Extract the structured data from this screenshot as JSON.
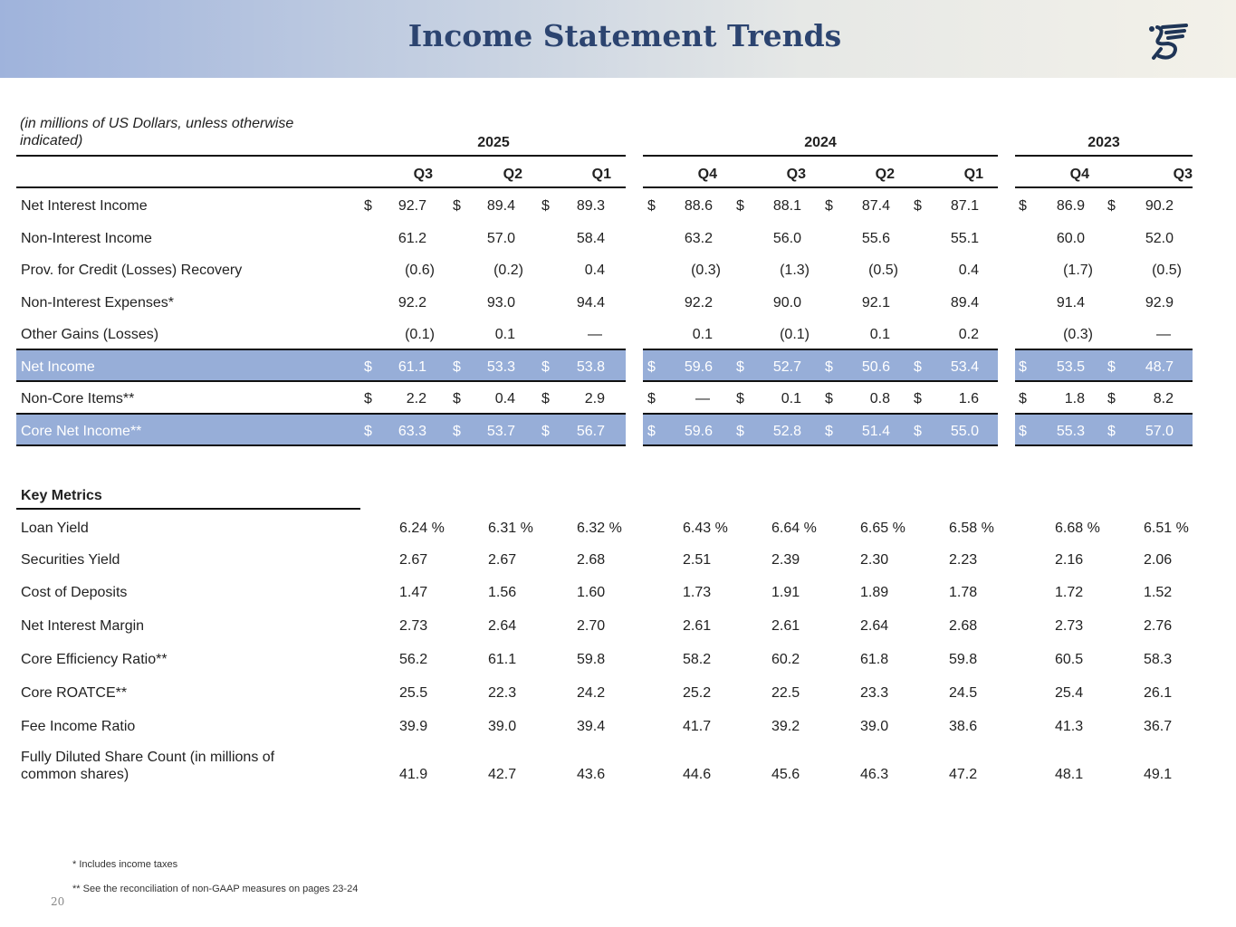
{
  "header": {
    "title": "Income Statement Trends",
    "logo": "dragon-5-logo"
  },
  "units_note": "(in millions of US Dollars, unless otherwise indicated)",
  "years": [
    "2025",
    "2024",
    "2023"
  ],
  "quarters": [
    "Q3",
    "Q2",
    "Q1",
    "Q4",
    "Q3",
    "Q2",
    "Q1",
    "Q4",
    "Q3"
  ],
  "income_rows": [
    {
      "label": "Net Interest Income",
      "dollar": true,
      "highlight": false,
      "values": [
        "92.7",
        "89.4",
        "89.3",
        "88.6",
        "88.1",
        "87.4",
        "87.1",
        "86.9",
        "90.2"
      ]
    },
    {
      "label": "Non-Interest Income",
      "dollar": false,
      "highlight": false,
      "values": [
        "61.2",
        "57.0",
        "58.4",
        "63.2",
        "56.0",
        "55.6",
        "55.1",
        "60.0",
        "52.0"
      ]
    },
    {
      "label": "Prov. for Credit (Losses) Recovery",
      "dollar": false,
      "highlight": false,
      "values": [
        "(0.6)",
        "(0.2)",
        "0.4",
        "(0.3)",
        "(1.3)",
        "(0.5)",
        "0.4",
        "(1.7)",
        "(0.5)"
      ]
    },
    {
      "label": "Non-Interest Expenses*",
      "dollar": false,
      "highlight": false,
      "values": [
        "92.2",
        "93.0",
        "94.4",
        "92.2",
        "90.0",
        "92.1",
        "89.4",
        "91.4",
        "92.9"
      ]
    },
    {
      "label": "Other Gains (Losses)",
      "dollar": false,
      "highlight": false,
      "values": [
        "(0.1)",
        "0.1",
        "—",
        "0.1",
        "(0.1)",
        "0.1",
        "0.2",
        "(0.3)",
        "—"
      ]
    },
    {
      "label": "Net Income",
      "dollar": true,
      "highlight": true,
      "values": [
        "61.1",
        "53.3",
        "53.8",
        "59.6",
        "52.7",
        "50.6",
        "53.4",
        "53.5",
        "48.7"
      ]
    },
    {
      "label": "Non-Core Items**",
      "dollar": true,
      "highlight": false,
      "values": [
        "2.2",
        "0.4",
        "2.9",
        "—",
        "0.1",
        "0.8",
        "1.6",
        "1.8",
        "8.2"
      ]
    },
    {
      "label": "Core Net Income**",
      "dollar": true,
      "highlight": true,
      "values": [
        "63.3",
        "53.7",
        "56.7",
        "59.6",
        "52.8",
        "51.4",
        "55.0",
        "55.3",
        "57.0"
      ]
    }
  ],
  "key_metrics_title": "Key Metrics",
  "metrics_rows": [
    {
      "label": "Loan Yield",
      "values": [
        "6.24 %",
        "6.31 %",
        "6.32 %",
        "6.43 %",
        "6.64 %",
        "6.65 %",
        "6.58 %",
        "6.68 %",
        "6.51 %"
      ]
    },
    {
      "label": "Securities Yield",
      "values": [
        "2.67",
        "2.67",
        "2.68",
        "2.51",
        "2.39",
        "2.30",
        "2.23",
        "2.16",
        "2.06"
      ]
    },
    {
      "label": "Cost of Deposits",
      "values": [
        "1.47",
        "1.56",
        "1.60",
        "1.73",
        "1.91",
        "1.89",
        "1.78",
        "1.72",
        "1.52"
      ]
    },
    {
      "label": "Net Interest Margin",
      "values": [
        "2.73",
        "2.64",
        "2.70",
        "2.61",
        "2.61",
        "2.64",
        "2.68",
        "2.73",
        "2.76"
      ]
    },
    {
      "label": "Core Efficiency Ratio**",
      "values": [
        "56.2",
        "61.1",
        "59.8",
        "58.2",
        "60.2",
        "61.8",
        "59.8",
        "60.5",
        "58.3"
      ]
    },
    {
      "label": "Core ROATCE**",
      "values": [
        "25.5",
        "22.3",
        "24.2",
        "25.2",
        "22.5",
        "23.3",
        "24.5",
        "25.4",
        "26.1"
      ]
    },
    {
      "label": "Fee Income Ratio",
      "values": [
        "39.9",
        "39.0",
        "39.4",
        "41.7",
        "39.2",
        "39.0",
        "38.6",
        "41.3",
        "36.7"
      ]
    },
    {
      "label": "Fully Diluted Share Count (in millions of common shares)",
      "values": [
        "41.9",
        "42.7",
        "43.6",
        "44.6",
        "45.6",
        "46.3",
        "47.2",
        "48.1",
        "49.1"
      ]
    }
  ],
  "currency_symbol": "$",
  "footnotes": [
    "* Includes income taxes",
    "** See the reconciliation of non-GAAP measures on pages 23-24"
  ],
  "page_number": "20",
  "colors": {
    "title": "#2c4470",
    "highlight": "#97aed8"
  }
}
